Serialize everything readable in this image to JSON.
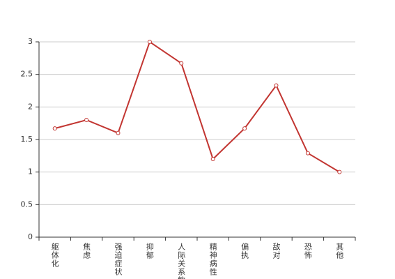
{
  "chart_data": {
    "type": "line",
    "categories": [
      "躯体化",
      "焦虑",
      "强迫症状",
      "抑郁",
      "人际关系敏感",
      "精神病性",
      "偏执",
      "敌对",
      "恐怖",
      "其他"
    ],
    "values": [
      1.67,
      1.8,
      1.6,
      3,
      2.67,
      1.2,
      1.67,
      2.33,
      1.29,
      1.0
    ],
    "color": "#c23531",
    "ylim": [
      0,
      3
    ],
    "yticks": [
      0,
      0.5,
      1,
      1.5,
      2,
      2.5,
      3
    ],
    "grid": true
  }
}
